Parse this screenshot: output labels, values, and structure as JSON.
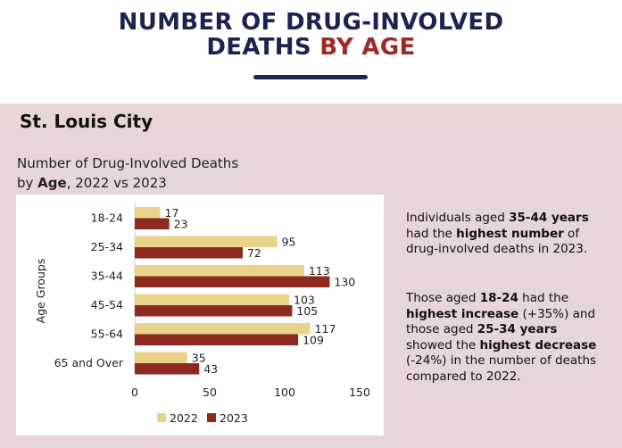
{
  "header": {
    "title_line1": "NUMBER OF DRUG-INVOLVED",
    "title_line2_main": "DEATHS",
    "title_line2_accent": "BY AGE"
  },
  "city": "St. Louis City",
  "subtitle": {
    "line1": "Number of Drug-Involved Deaths",
    "line2_prefix": "by ",
    "line2_bold": "Age",
    "line2_suffix": ", 2022 vs 2023"
  },
  "colors": {
    "navy": "#1b2450",
    "accent_red": "#9e2a25",
    "panel_bg": "#e6d6d5",
    "series_2022": "#e9d38a",
    "series_2023": "#8c2a1f"
  },
  "chart_data": {
    "type": "bar",
    "orientation": "horizontal",
    "title": "Number of Drug-Involved Deaths by Age, 2022 vs 2023",
    "xlabel": "",
    "ylabel": "Age Groups",
    "xlim": [
      0,
      150
    ],
    "xticks": [
      "0",
      "50",
      "100",
      "150"
    ],
    "categories": [
      "18-24",
      "25-34",
      "35-44",
      "45-54",
      "55-64",
      "65 and Over"
    ],
    "series": [
      {
        "name": "2022",
        "values": [
          17,
          95,
          113,
          103,
          117,
          35
        ]
      },
      {
        "name": "2023",
        "values": [
          23,
          72,
          130,
          105,
          109,
          43
        ]
      }
    ],
    "legend": "bottom",
    "grid": false
  },
  "description": {
    "p1": [
      {
        "t": "Individuals aged ",
        "b": false
      },
      {
        "t": "35-44 years",
        "b": true
      },
      {
        "t": " had the ",
        "b": false
      },
      {
        "t": "highest number",
        "b": true
      },
      {
        "t": " of drug-involved deaths in 2023.",
        "b": false
      }
    ],
    "p2": [
      {
        "t": "Those aged ",
        "b": false
      },
      {
        "t": "18-24",
        "b": true
      },
      {
        "t": " had the ",
        "b": false
      },
      {
        "t": "highest increase",
        "b": true
      },
      {
        "t": " (+35%) and those aged ",
        "b": false
      },
      {
        "t": "25-34 years",
        "b": true
      },
      {
        "t": " showed the ",
        "b": false
      },
      {
        "t": "highest decrease",
        "b": true
      },
      {
        "t": " (-24%) in the number of deaths compared to 2022.",
        "b": false
      }
    ]
  }
}
